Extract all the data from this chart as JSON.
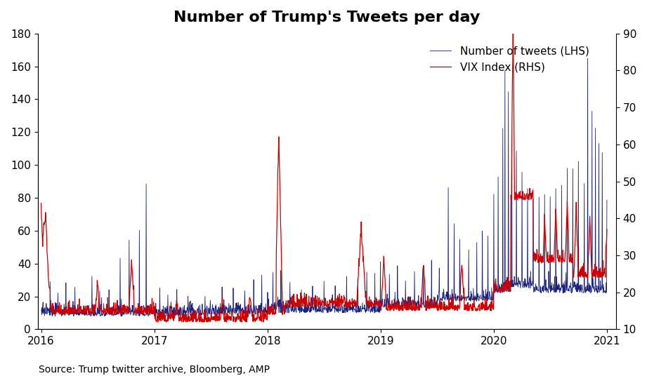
{
  "title": "Number of Trump's Tweets per day",
  "source_text": "Source: Trump twitter archive, Bloomberg, AMP",
  "tweet_label": "Number of tweets (LHS)",
  "vix_label": "VIX Index (RHS)",
  "lhs_ylim": [
    0,
    180
  ],
  "rhs_ylim": [
    10,
    90
  ],
  "lhs_yticks": [
    0,
    20,
    40,
    60,
    80,
    100,
    120,
    140,
    160,
    180
  ],
  "rhs_yticks": [
    10,
    20,
    30,
    40,
    50,
    60,
    70,
    80,
    90
  ],
  "xticks": [
    2016,
    2017,
    2018,
    2019,
    2020,
    2021
  ],
  "xlim_start": 2015.97,
  "xlim_end": 2021.08,
  "tweet_color": "#1a237e",
  "vix_color": "#cc0000",
  "background_color": "#ffffff",
  "title_fontsize": 16,
  "legend_fontsize": 11,
  "tick_fontsize": 11,
  "source_fontsize": 10
}
